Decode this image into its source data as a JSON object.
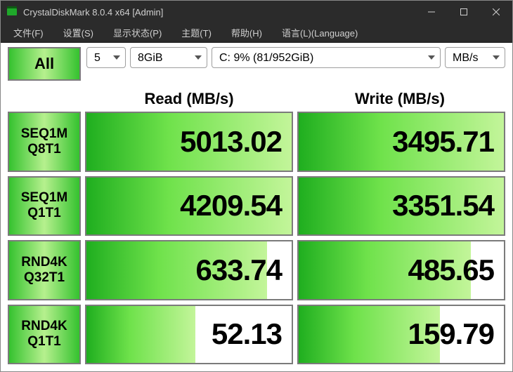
{
  "title": "CrystalDiskMark 8.0.4 x64 [Admin]",
  "menu": {
    "file": "文件(F)",
    "settings": "设置(S)",
    "display": "显示状态(P)",
    "theme": "主题(T)",
    "help": "帮助(H)",
    "language": "语言(L)(Language)"
  },
  "controls": {
    "all_label": "All",
    "count": "5",
    "size": "8GiB",
    "drive": "C: 9% (81/952GiB)",
    "unit": "MB/s"
  },
  "headers": {
    "read": "Read (MB/s)",
    "write": "Write (MB/s)"
  },
  "tests": [
    {
      "line1": "SEQ1M",
      "line2": "Q8T1",
      "read": "5013.02",
      "read_bar_pct": 100,
      "write": "3495.71",
      "write_bar_pct": 100
    },
    {
      "line1": "SEQ1M",
      "line2": "Q1T1",
      "read": "4209.54",
      "read_bar_pct": 100,
      "write": "3351.54",
      "write_bar_pct": 100
    },
    {
      "line1": "RND4K",
      "line2": "Q32T1",
      "read": "633.74",
      "read_bar_pct": 88,
      "write": "485.65",
      "write_bar_pct": 84
    },
    {
      "line1": "RND4K",
      "line2": "Q1T1",
      "read": "52.13",
      "read_bar_pct": 53,
      "write": "159.79",
      "write_bar_pct": 69
    }
  ],
  "colors": {
    "titlebar": "#2b2b2b",
    "bar_gradient_start": "#1fae1f",
    "bar_gradient_end": "#c3f59a",
    "button_gradient_start": "#35c22f",
    "border_gray": "#7b7b7b"
  }
}
